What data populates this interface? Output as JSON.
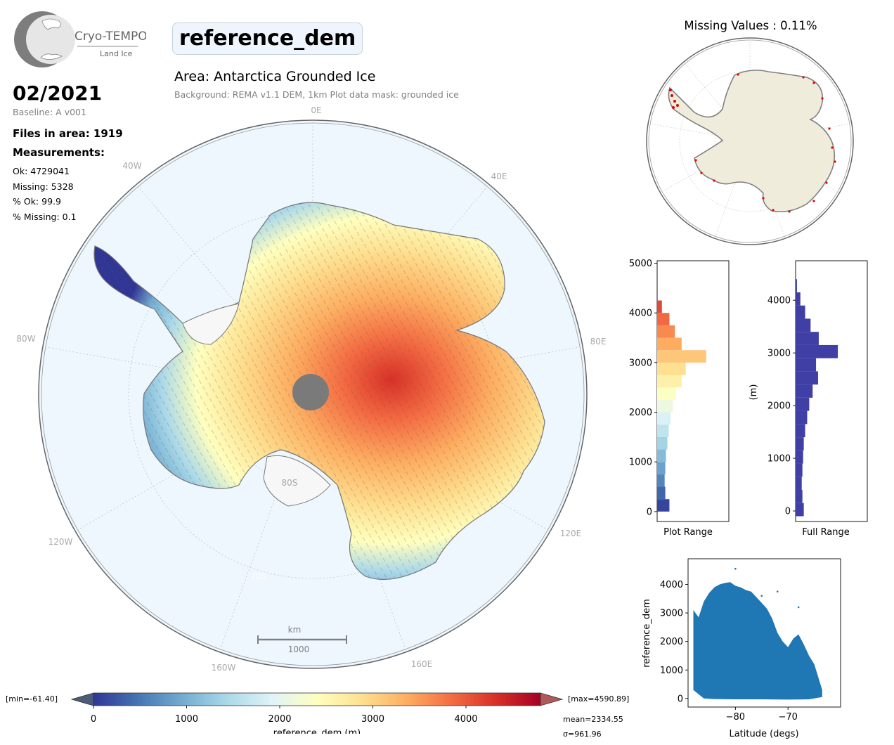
{
  "logo": {
    "name": "Cryo-TEMPO",
    "sub": "Land Ice"
  },
  "header": {
    "parameter": "reference_dem",
    "area": "Area: Antarctica Grounded Ice",
    "background_note": "Background: REMA v1.1 DEM, 1km   Plot data mask: grounded ice"
  },
  "summary": {
    "date": "02/2021",
    "baseline": "Baseline: A v001",
    "files": "Files in area: 1919",
    "measurements_heading": "Measurements:",
    "ok": "Ok: 4729041",
    "missing": "Missing: 5328",
    "pct_ok": "% Ok: 99.9",
    "pct_missing": "% Missing: 0.1"
  },
  "map": {
    "lon_labels": [
      "0E",
      "40E",
      "80E",
      "120E",
      "160E",
      "160W",
      "120W",
      "80W",
      "40W"
    ],
    "lat_labels": [
      "80S",
      "70S"
    ],
    "scalebar": {
      "unit": "km",
      "value": "1000"
    }
  },
  "missing_panel": {
    "title": "Missing Values : 0.11%"
  },
  "colorbar": {
    "min_label": "[min=-61.40]",
    "max_label": "[max=4590.89]",
    "ticks": [
      "0",
      "1000",
      "2000",
      "3000",
      "4000"
    ],
    "label": "reference_dem (m)",
    "mean": "mean=2334.55",
    "sigma": "σ=961.96",
    "colors": [
      "#313695",
      "#4575b4",
      "#74add1",
      "#abd9e9",
      "#e0f3f8",
      "#ffffbf",
      "#fee090",
      "#fdae61",
      "#f46d43",
      "#d73027",
      "#a50026"
    ]
  },
  "chart_data": [
    {
      "type": "bar",
      "orientation": "horizontal",
      "xlabel": "Plot Range",
      "ylabel": "",
      "ylim": [
        -200,
        5050
      ],
      "yticks": [
        "0",
        "1000",
        "2000",
        "3000",
        "4000",
        "5000"
      ],
      "bins": [
        0,
        250,
        500,
        750,
        1000,
        1250,
        1500,
        1750,
        2000,
        2250,
        2500,
        2750,
        3000,
        3250,
        3500,
        3750,
        4000
      ],
      "counts": [
        0.18,
        0.12,
        0.11,
        0.12,
        0.13,
        0.15,
        0.17,
        0.2,
        0.23,
        0.28,
        0.36,
        0.42,
        0.72,
        0.36,
        0.26,
        0.18,
        0.07
      ]
    },
    {
      "type": "bar",
      "orientation": "horizontal",
      "xlabel": "Full Range",
      "ylabel": "(m)",
      "ylim": [
        -200,
        4750
      ],
      "yticks": [
        "0",
        "1000",
        "2000",
        "3000",
        "4000"
      ],
      "bins": [
        -100,
        150,
        400,
        650,
        900,
        1150,
        1400,
        1650,
        1900,
        2150,
        2400,
        2650,
        2900,
        3150,
        3400,
        3650,
        3900,
        4150
      ],
      "counts": [
        0.12,
        0.1,
        0.09,
        0.1,
        0.11,
        0.12,
        0.14,
        0.17,
        0.2,
        0.25,
        0.33,
        0.3,
        0.62,
        0.34,
        0.22,
        0.14,
        0.07,
        0.02
      ]
    },
    {
      "type": "scatter",
      "xlabel": "Latitude (degs)",
      "ylabel": "reference_dem",
      "xlim": [
        -89,
        -60
      ],
      "ylim": [
        -300,
        4900
      ],
      "xticks": [
        "−80",
        "−70"
      ],
      "yticks": [
        "0",
        "1000",
        "2000",
        "3000",
        "4000"
      ],
      "color": "#1f77b4",
      "upper_envelope": [
        [
          -88,
          3100
        ],
        [
          -87,
          2850
        ],
        [
          -86,
          3400
        ],
        [
          -85,
          3700
        ],
        [
          -84,
          3900
        ],
        [
          -83,
          4000
        ],
        [
          -82,
          4050
        ],
        [
          -81,
          4080
        ],
        [
          -80,
          3950
        ],
        [
          -79,
          3900
        ],
        [
          -78,
          3800
        ],
        [
          -77,
          3750
        ],
        [
          -76,
          3550
        ],
        [
          -75,
          3350
        ],
        [
          -74,
          3150
        ],
        [
          -73,
          2800
        ],
        [
          -72,
          2300
        ],
        [
          -71,
          2000
        ],
        [
          -70,
          1800
        ],
        [
          -69,
          2100
        ],
        [
          -68,
          2250
        ],
        [
          -67,
          1900
        ],
        [
          -66,
          1500
        ],
        [
          -65,
          1200
        ],
        [
          -64,
          600
        ],
        [
          -63.5,
          300
        ]
      ],
      "lower_envelope": [
        [
          -88,
          300
        ],
        [
          -86,
          0
        ],
        [
          -84,
          -20
        ],
        [
          -80,
          -30
        ],
        [
          -75,
          -30
        ],
        [
          -70,
          -40
        ],
        [
          -66,
          -30
        ],
        [
          -63.5,
          50
        ]
      ],
      "outliers": [
        [
          -80,
          4550
        ],
        [
          -72,
          3750
        ],
        [
          -68,
          3200
        ],
        [
          -75,
          3600
        ]
      ]
    }
  ]
}
